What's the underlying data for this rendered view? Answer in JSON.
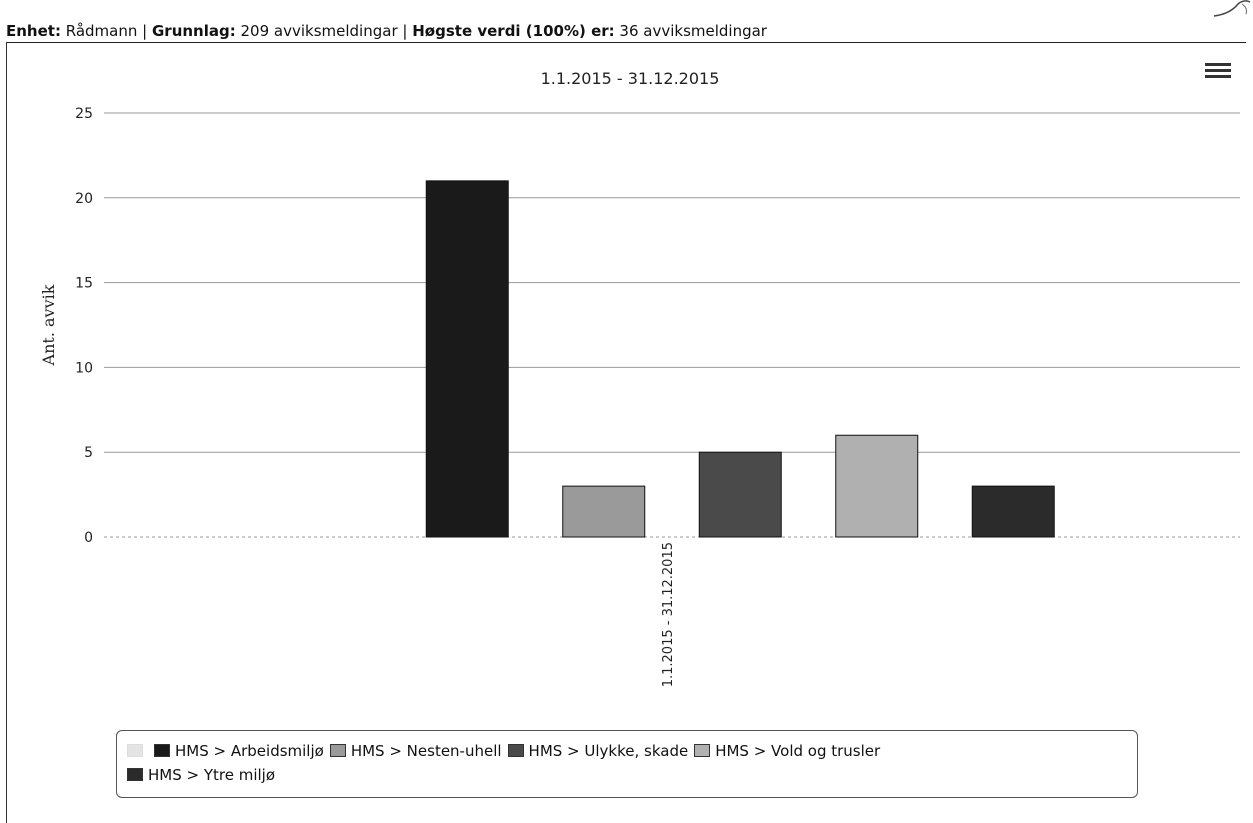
{
  "header": {
    "unit_label": "Enhet:",
    "unit_value": "Rådmann",
    "sep1": "|",
    "basis_label": "Grunnlag:",
    "basis_value": "209 avviksmeldingar",
    "sep2": "|",
    "max_label": "Høgste verdi (100%) er:",
    "max_value": "36 avviksmeldingar"
  },
  "menu": {
    "icon": "hamburger-menu-icon"
  },
  "chart_data": {
    "type": "bar",
    "title": "1.1.2015 - 31.12.2015",
    "ylabel": "Ant. avvik",
    "xlabel": "",
    "categories": [
      "1.1.2015 - 31.12.2015"
    ],
    "ylim": [
      0,
      25
    ],
    "yticks": [
      0,
      5,
      10,
      15,
      20,
      25
    ],
    "grid": true,
    "legend_position": "bottom",
    "series": [
      {
        "name": "",
        "values": [
          0
        ],
        "color": "#e4e4e4",
        "hidden": true
      },
      {
        "name": "HMS > Arbeidsmiljø",
        "values": [
          21
        ],
        "color": "#1a1a1a"
      },
      {
        "name": "HMS > Nesten-uhell",
        "values": [
          3
        ],
        "color": "#9a9a9a"
      },
      {
        "name": "HMS > Ulykke, skade",
        "values": [
          5
        ],
        "color": "#4a4a4a"
      },
      {
        "name": "HMS > Vold og trusler",
        "values": [
          6
        ],
        "color": "#b0b0b0"
      },
      {
        "name": "HMS > Ytre miljø",
        "values": [
          3
        ],
        "color": "#2b2b2b"
      }
    ]
  }
}
